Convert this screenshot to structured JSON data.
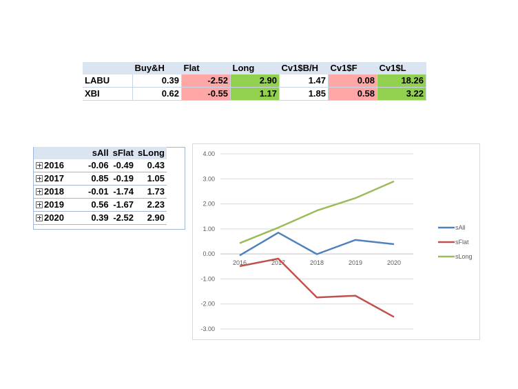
{
  "top_table": {
    "headers": [
      "",
      "Buy&H",
      "Flat",
      "Long",
      "Cv1$B/H",
      "Cv1$F",
      "Cv1$L"
    ],
    "rows": [
      {
        "label": "LABU",
        "values": [
          "0.39",
          "-2.52",
          "2.90",
          "1.47",
          "0.08",
          "18.26"
        ]
      },
      {
        "label": "XBI",
        "values": [
          "0.62",
          "-0.55",
          "1.17",
          "1.85",
          "0.58",
          "3.22"
        ]
      }
    ],
    "highlight": {
      "pink": "#ffa6a6",
      "green": "#92d050"
    }
  },
  "pivot_table": {
    "headers": [
      "sAll",
      "sFlat",
      "sLong"
    ],
    "rows": [
      {
        "year": "2016",
        "values": [
          "-0.06",
          "-0.49",
          "0.43"
        ]
      },
      {
        "year": "2017",
        "values": [
          "0.85",
          "-0.19",
          "1.05"
        ]
      },
      {
        "year": "2018",
        "values": [
          "-0.01",
          "-1.74",
          "1.73"
        ]
      },
      {
        "year": "2019",
        "values": [
          "0.56",
          "-1.67",
          "2.23"
        ]
      },
      {
        "year": "2020",
        "values": [
          "0.39",
          "-2.52",
          "2.90"
        ]
      }
    ]
  },
  "chart_data": {
    "type": "line",
    "title": "",
    "xlabel": "",
    "ylabel": "",
    "categories": [
      "2016",
      "2017",
      "2018",
      "2019",
      "2020"
    ],
    "ylim": [
      -3,
      4
    ],
    "ytick_labels": [
      "4.00",
      "3.00",
      "2.00",
      "1.00",
      "0.00",
      "-1.00",
      "-2.00",
      "-3.00"
    ],
    "grid": true,
    "legend_position": "right",
    "series": [
      {
        "name": "sAll",
        "color": "#4f81bd",
        "values": [
          -0.06,
          0.85,
          -0.01,
          0.56,
          0.39
        ]
      },
      {
        "name": "sFlat",
        "color": "#c0504d",
        "values": [
          -0.49,
          -0.19,
          -1.74,
          -1.67,
          -2.52
        ]
      },
      {
        "name": "sLong",
        "color": "#9bbb59",
        "values": [
          0.43,
          1.05,
          1.73,
          2.23,
          2.9
        ]
      }
    ]
  }
}
